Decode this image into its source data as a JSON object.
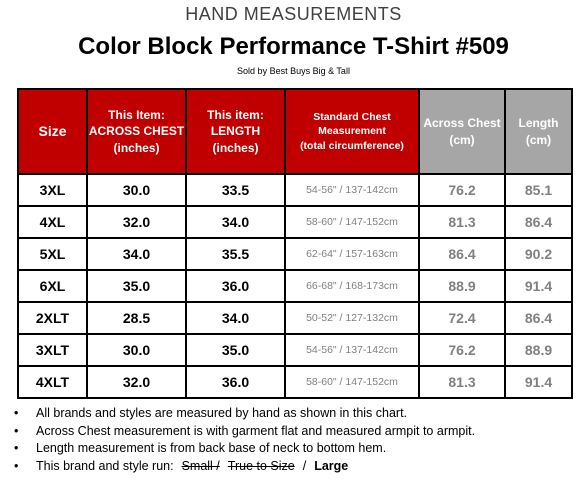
{
  "header": {
    "top_title": "HAND MEASUREMENTS",
    "title": "Color Block Performance T-Shirt #509",
    "subtitle": "Sold by Best Buys Big & Tall"
  },
  "table": {
    "headers": {
      "size": "Size",
      "across_chest_in": [
        "This Item:",
        "ACROSS CHEST",
        "(inches)"
      ],
      "length_in": [
        "This item:",
        "LENGTH",
        "(inches)"
      ],
      "standard_chest": [
        "Standard Chest",
        "Measurement",
        "(total circumference)"
      ],
      "across_chest_cm": [
        "Across Chest",
        "(cm)"
      ],
      "length_cm": [
        "Length",
        "(cm)"
      ]
    },
    "header_colors": {
      "red": "#c00000",
      "grey": "#a6a6a6"
    },
    "rows": [
      {
        "size": "3XL",
        "chest_in": "30.0",
        "length_in": "33.5",
        "standard": "54-56\" / 137-142cm",
        "chest_cm": "76.2",
        "length_cm": "85.1"
      },
      {
        "size": "4XL",
        "chest_in": "32.0",
        "length_in": "34.0",
        "standard": "58-60\" / 147-152cm",
        "chest_cm": "81.3",
        "length_cm": "86.4"
      },
      {
        "size": "5XL",
        "chest_in": "34.0",
        "length_in": "35.5",
        "standard": "62-64\" / 157-163cm",
        "chest_cm": "86.4",
        "length_cm": "90.2"
      },
      {
        "size": "6XL",
        "chest_in": "35.0",
        "length_in": "36.0",
        "standard": "66-68\" / 168-173cm",
        "chest_cm": "88.9",
        "length_cm": "91.4"
      },
      {
        "size": "2XLT",
        "chest_in": "28.5",
        "length_in": "34.0",
        "standard": "50-52\" / 127-132cm",
        "chest_cm": "72.4",
        "length_cm": "86.4"
      },
      {
        "size": "3XLT",
        "chest_in": "30.0",
        "length_in": "35.0",
        "standard": "54-56\" / 137-142cm",
        "chest_cm": "76.2",
        "length_cm": "88.9"
      },
      {
        "size": "4XLT",
        "chest_in": "32.0",
        "length_in": "36.0",
        "standard": "58-60\" / 147-152cm",
        "chest_cm": "81.3",
        "length_cm": "91.4"
      }
    ]
  },
  "notes": {
    "bullet": "•",
    "items": [
      "All brands and styles are measured by hand as shown in this chart.",
      "Across Chest measurement is with garment flat and measured armpit to armpit.",
      "Length measurement is from back base of neck to bottom hem."
    ],
    "run_prefix": "This brand and style run:",
    "run_struck_1": "Small /",
    "run_struck_2": "True to Size",
    "run_sep": "/",
    "run_active": "Large"
  }
}
